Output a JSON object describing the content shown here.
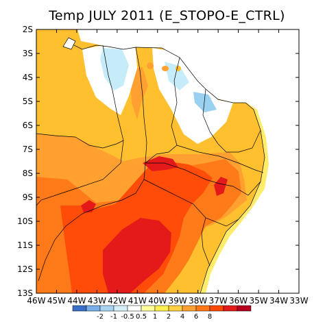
{
  "title": "Temp JULY 2011 (E_STOPO-E_CTRL)",
  "lat_labels": [
    "2S",
    "3S",
    "4S",
    "5S",
    "6S",
    "7S",
    "8S",
    "9S",
    "10S",
    "11S",
    "12S",
    "13S"
  ],
  "lon_labels": [
    "46W",
    "45W",
    "44W",
    "43W",
    "42W",
    "41W",
    "40W",
    "39W",
    "38W",
    "37W",
    "36W",
    "35W",
    "34W",
    "33W"
  ],
  "colorbar": {
    "labels": [
      "-2",
      "-1",
      "-0.5",
      "0.5",
      "1",
      "2",
      "4",
      "6",
      "8"
    ],
    "colors": [
      "#3a6fc8",
      "#78aee8",
      "#a9d4f0",
      "#d6f0fa",
      "#ffffff",
      "#ffff9a",
      "#fff050",
      "#ffd040",
      "#ffa030",
      "#ff7818",
      "#ff4800",
      "#e41a1a",
      "#b4001e"
    ]
  },
  "palette": {
    "ocean": "#ffffff",
    "light_yellow": "#ffec6a",
    "yellow_orange": "#ffc030",
    "orange": "#ffa030",
    "dark_orange": "#ff7a18",
    "red_orange": "#ff4c08",
    "red": "#e41a1a",
    "neutral": "#ffffff",
    "light_blue": "#c6ecfa",
    "blue": "#9ad0f0"
  }
}
